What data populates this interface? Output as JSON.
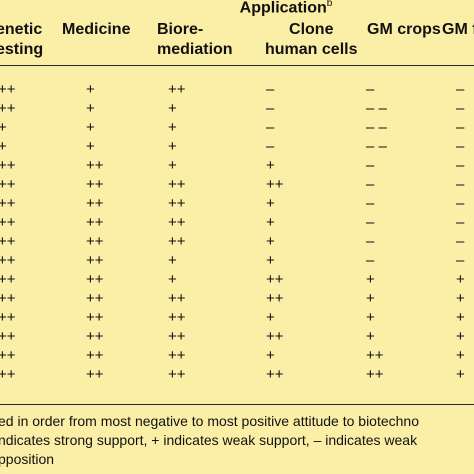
{
  "header": {
    "application_label": "Application",
    "application_sup": "b",
    "columns": [
      [
        "enetic",
        "esting"
      ],
      [
        "Medicine",
        ""
      ],
      [
        "Biore-",
        "mediation"
      ],
      [
        "Clone",
        "human cells"
      ],
      [
        "GM crops",
        ""
      ],
      [
        "GM f",
        ""
      ]
    ]
  },
  "rows": [
    [
      "++",
      "+",
      "++",
      "–",
      "–",
      "–"
    ],
    [
      "++",
      "+",
      "+",
      "–",
      "– –",
      "–"
    ],
    [
      "+",
      "+",
      "+",
      "–",
      "– –",
      "–"
    ],
    [
      "+",
      "+",
      "+",
      "–",
      "– –",
      "–"
    ],
    [
      "++",
      "++",
      "+",
      "+",
      "–",
      "–"
    ],
    [
      "++",
      "++",
      "++",
      "++",
      "–",
      "–"
    ],
    [
      "++",
      "++",
      "++",
      "+",
      "–",
      "–"
    ],
    [
      "++",
      "++",
      "++",
      "+",
      "–",
      "–"
    ],
    [
      "++",
      "++",
      "++",
      "+",
      "–",
      "–"
    ],
    [
      "++",
      "++",
      "+",
      "+",
      "–",
      "–"
    ],
    [
      "++",
      "++",
      "+",
      "++",
      "+",
      "+"
    ],
    [
      "++",
      "++",
      "++",
      "++",
      "+",
      "+"
    ],
    [
      "++",
      "++",
      "++",
      "+",
      "+",
      "+"
    ],
    [
      "++",
      "++",
      "++",
      "++",
      "+",
      "+"
    ],
    [
      "++",
      "++",
      "++",
      "+",
      "++",
      "+"
    ],
    [
      "++",
      "++",
      "++",
      "++",
      "++",
      "+"
    ]
  ],
  "footnotes": [
    "ed in order from most negative to most positive attitude to biotechno",
    "ndicates strong support, + indicates weak support, – indicates weak",
    "pposition"
  ]
}
